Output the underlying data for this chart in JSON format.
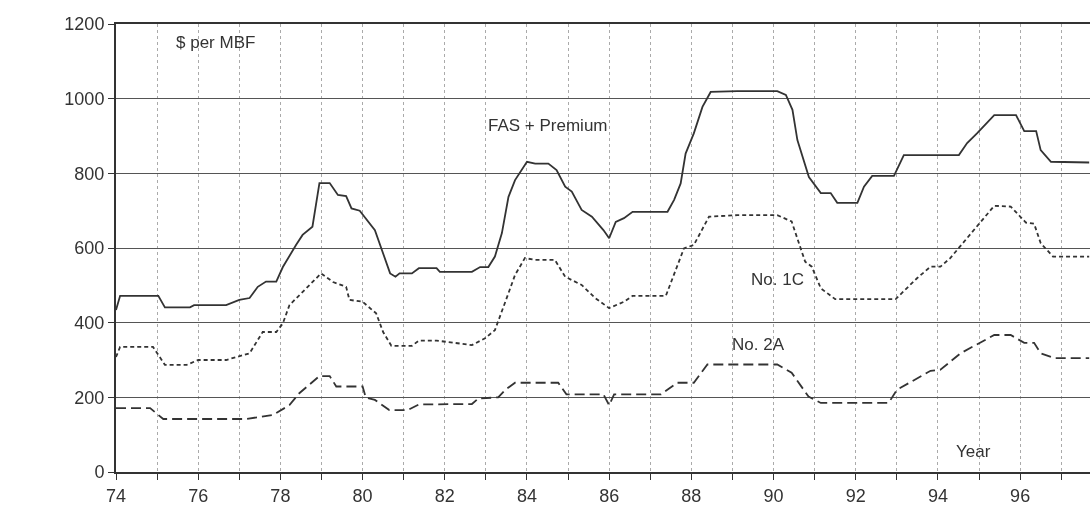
{
  "chart_data": {
    "type": "line",
    "ylabel": "$ per MBF",
    "xlabel": "Year",
    "xlim": [
      74,
      97.7
    ],
    "ylim": [
      0,
      1200
    ],
    "xticks": [
      {
        "value": 74,
        "label": "74"
      },
      {
        "value": 75,
        "label": null
      },
      {
        "value": 76,
        "label": "76"
      },
      {
        "value": 77,
        "label": null
      },
      {
        "value": 78,
        "label": "78"
      },
      {
        "value": 79,
        "label": null
      },
      {
        "value": 80,
        "label": "80"
      },
      {
        "value": 81,
        "label": null
      },
      {
        "value": 82,
        "label": "82"
      },
      {
        "value": 83,
        "label": null
      },
      {
        "value": 84,
        "label": "84"
      },
      {
        "value": 85,
        "label": null
      },
      {
        "value": 86,
        "label": "86"
      },
      {
        "value": 87,
        "label": null
      },
      {
        "value": 88,
        "label": "88"
      },
      {
        "value": 89,
        "label": null
      },
      {
        "value": 90,
        "label": "90"
      },
      {
        "value": 91,
        "label": null
      },
      {
        "value": 92,
        "label": "92"
      },
      {
        "value": 93,
        "label": null
      },
      {
        "value": 94,
        "label": "94"
      },
      {
        "value": 95,
        "label": null
      },
      {
        "value": 96,
        "label": "96"
      },
      {
        "value": 97,
        "label": null
      }
    ],
    "yticks": [
      0,
      200,
      400,
      600,
      800,
      1000,
      1200
    ],
    "grid": true,
    "legend": false,
    "marker": "none",
    "series": [
      {
        "name": "FAS + Premium",
        "color": "#333333",
        "line_style": "solid",
        "x": [
          74.0,
          74.1,
          75.03,
          75.19,
          75.8,
          75.9,
          76.68,
          77.0,
          77.25,
          77.45,
          77.65,
          77.9,
          78.06,
          78.38,
          78.54,
          78.78,
          78.95,
          79.2,
          79.4,
          79.6,
          79.73,
          79.93,
          80.3,
          80.67,
          80.8,
          80.9,
          81.2,
          81.37,
          81.8,
          81.88,
          82.66,
          82.86,
          83.06,
          83.22,
          83.39,
          83.55,
          83.71,
          84.0,
          84.2,
          84.52,
          84.72,
          84.93,
          85.09,
          85.33,
          85.58,
          85.86,
          86.0,
          86.16,
          86.36,
          86.57,
          87.42,
          87.58,
          87.74,
          87.86,
          88.06,
          88.27,
          88.47,
          89.12,
          90.09,
          90.3,
          90.46,
          90.58,
          90.86,
          91.15,
          91.39,
          91.55,
          92.04,
          92.2,
          92.4,
          92.93,
          93.17,
          94.51,
          94.71,
          94.95,
          95.37,
          95.9,
          96.1,
          96.39,
          96.5,
          96.75,
          97.68
        ],
        "values": [
          434,
          472,
          472,
          441,
          441,
          447,
          447,
          461,
          466,
          496,
          510,
          510,
          549,
          608,
          635,
          657,
          774,
          774,
          742,
          739,
          706,
          700,
          648,
          532,
          523,
          532,
          532,
          546,
          546,
          536,
          536,
          549,
          549,
          577,
          640,
          737,
          782,
          831,
          826,
          826,
          809,
          764,
          751,
          702,
          684,
          648,
          626,
          670,
          680,
          697,
          697,
          729,
          773,
          853,
          907,
          978,
          1018,
          1020,
          1020,
          1010,
          970,
          889,
          790,
          747,
          747,
          721,
          721,
          764,
          793,
          793,
          849,
          849,
          881,
          907,
          956,
          956,
          913,
          913,
          862,
          831,
          829
        ]
      },
      {
        "name": "No. 1C",
        "color": "#333333",
        "line_style": "dotted",
        "x": [
          74.0,
          74.1,
          74.9,
          75.19,
          75.72,
          76.0,
          76.68,
          77.25,
          77.57,
          77.9,
          78.06,
          78.22,
          78.63,
          78.99,
          79.28,
          79.6,
          79.68,
          80.0,
          80.33,
          80.5,
          80.7,
          81.2,
          81.37,
          81.8,
          82.66,
          82.98,
          83.22,
          83.55,
          83.71,
          83.95,
          84.2,
          84.68,
          84.93,
          85.33,
          85.66,
          86.0,
          86.36,
          86.57,
          87.38,
          87.82,
          88.06,
          88.43,
          89.12,
          90.09,
          90.44,
          90.77,
          90.93,
          91.15,
          91.5,
          92.97,
          93.49,
          93.82,
          94.06,
          94.3,
          95.37,
          95.77,
          96.14,
          96.34,
          96.5,
          96.8,
          97.68
        ],
        "values": [
          308,
          335,
          335,
          287,
          287,
          300,
          300,
          318,
          375,
          375,
          398,
          447,
          492,
          532,
          509,
          496,
          461,
          456,
          425,
          375,
          338,
          338,
          352,
          352,
          340,
          358,
          380,
          479,
          528,
          573,
          568,
          568,
          523,
          501,
          466,
          439,
          456,
          472,
          472,
          599,
          608,
          684,
          688,
          688,
          671,
          563,
          550,
          492,
          463,
          463,
          519,
          550,
          550,
          573,
          713,
          711,
          668,
          665,
          613,
          577,
          577
        ]
      },
      {
        "name": "No. 2A",
        "color": "#333333",
        "line_style": "dashed",
        "x": [
          74.0,
          74.83,
          75.15,
          77.17,
          77.82,
          78.22,
          78.46,
          78.95,
          79.2,
          79.36,
          80.0,
          80.08,
          80.3,
          80.65,
          81.1,
          81.37,
          82.66,
          82.82,
          83.3,
          83.47,
          83.71,
          84.76,
          84.96,
          85.86,
          86.0,
          86.12,
          87.26,
          87.66,
          88.06,
          88.39,
          90.09,
          90.44,
          90.85,
          91.15,
          92.8,
          93.0,
          93.82,
          94.06,
          94.55,
          95.37,
          95.77,
          96.1,
          96.34,
          96.5,
          96.83,
          97.68
        ],
        "values": [
          171,
          171,
          142,
          142,
          153,
          179,
          211,
          257,
          257,
          229,
          229,
          199,
          193,
          166,
          166,
          181,
          182,
          197,
          200,
          220,
          239,
          239,
          208,
          208,
          179,
          208,
          208,
          239,
          239,
          288,
          288,
          266,
          202,
          185,
          185,
          220,
          271,
          274,
          318,
          367,
          367,
          346,
          346,
          318,
          305,
          305
        ]
      }
    ]
  }
}
